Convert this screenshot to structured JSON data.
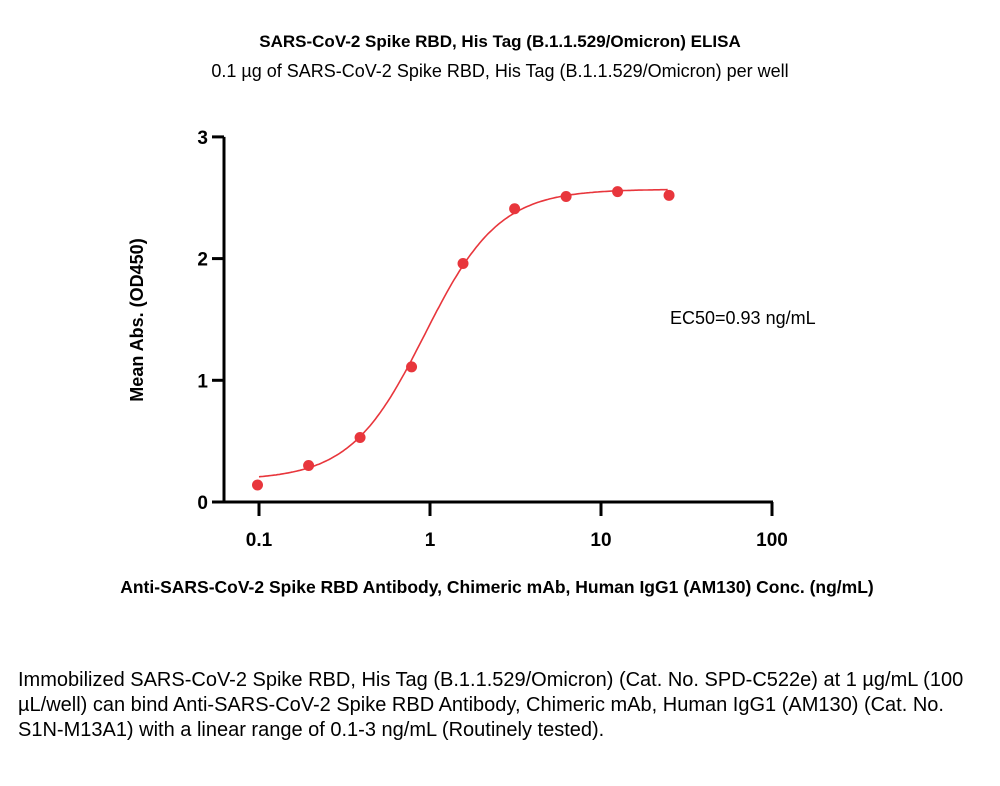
{
  "chart_data": {
    "type": "scatter",
    "title": "SARS-CoV-2 Spike RBD, His Tag (B.1.1.529/Omicron) ELISA",
    "subtitle": "0.1 µg of SARS-CoV-2 Spike RBD, His Tag (B.1.1.529/Omicron) per well",
    "xlabel": "Anti-SARS-CoV-2 Spike RBD Antibody, Chimeric mAb, Human IgG1 (AM130) Conc. (ng/mL)",
    "ylabel": "Mean Abs. (OD450)",
    "xscale": "log",
    "xlim": [
      0.06,
      100
    ],
    "ylim": [
      0,
      3
    ],
    "xticks": [
      0.1,
      1,
      10,
      100
    ],
    "xtick_labels": [
      "0.1",
      "1",
      "10",
      "100"
    ],
    "yticks": [
      0,
      1,
      2,
      3
    ],
    "ytick_labels": [
      "0",
      "1",
      "2",
      "3"
    ],
    "grid": false,
    "series": [
      {
        "name": "AM130",
        "color": "#e8363c",
        "x": [
          0.098,
          0.195,
          0.39,
          0.78,
          1.56,
          3.125,
          6.25,
          12.5,
          25
        ],
        "y": [
          0.14,
          0.3,
          0.53,
          1.11,
          1.96,
          2.41,
          2.51,
          2.55,
          2.52
        ],
        "fit": {
          "model": "4PL",
          "bottom": 0.18,
          "top": 2.57,
          "ec50": 0.93,
          "hill": 2.0
        }
      }
    ],
    "annotation": "EC50=0.93 ng/mL"
  },
  "caption": "Immobilized SARS-CoV-2 Spike RBD, His Tag (B.1.1.529/Omicron) (Cat. No. SPD-C522e) at 1 µg/mL (100 µL/well) can bind Anti-SARS-CoV-2 Spike RBD Antibody, Chimeric mAb, Human IgG1 (AM130) (Cat. No. S1N-M13A1) with a linear range of 0.1-3 ng/mL (Routinely tested)."
}
